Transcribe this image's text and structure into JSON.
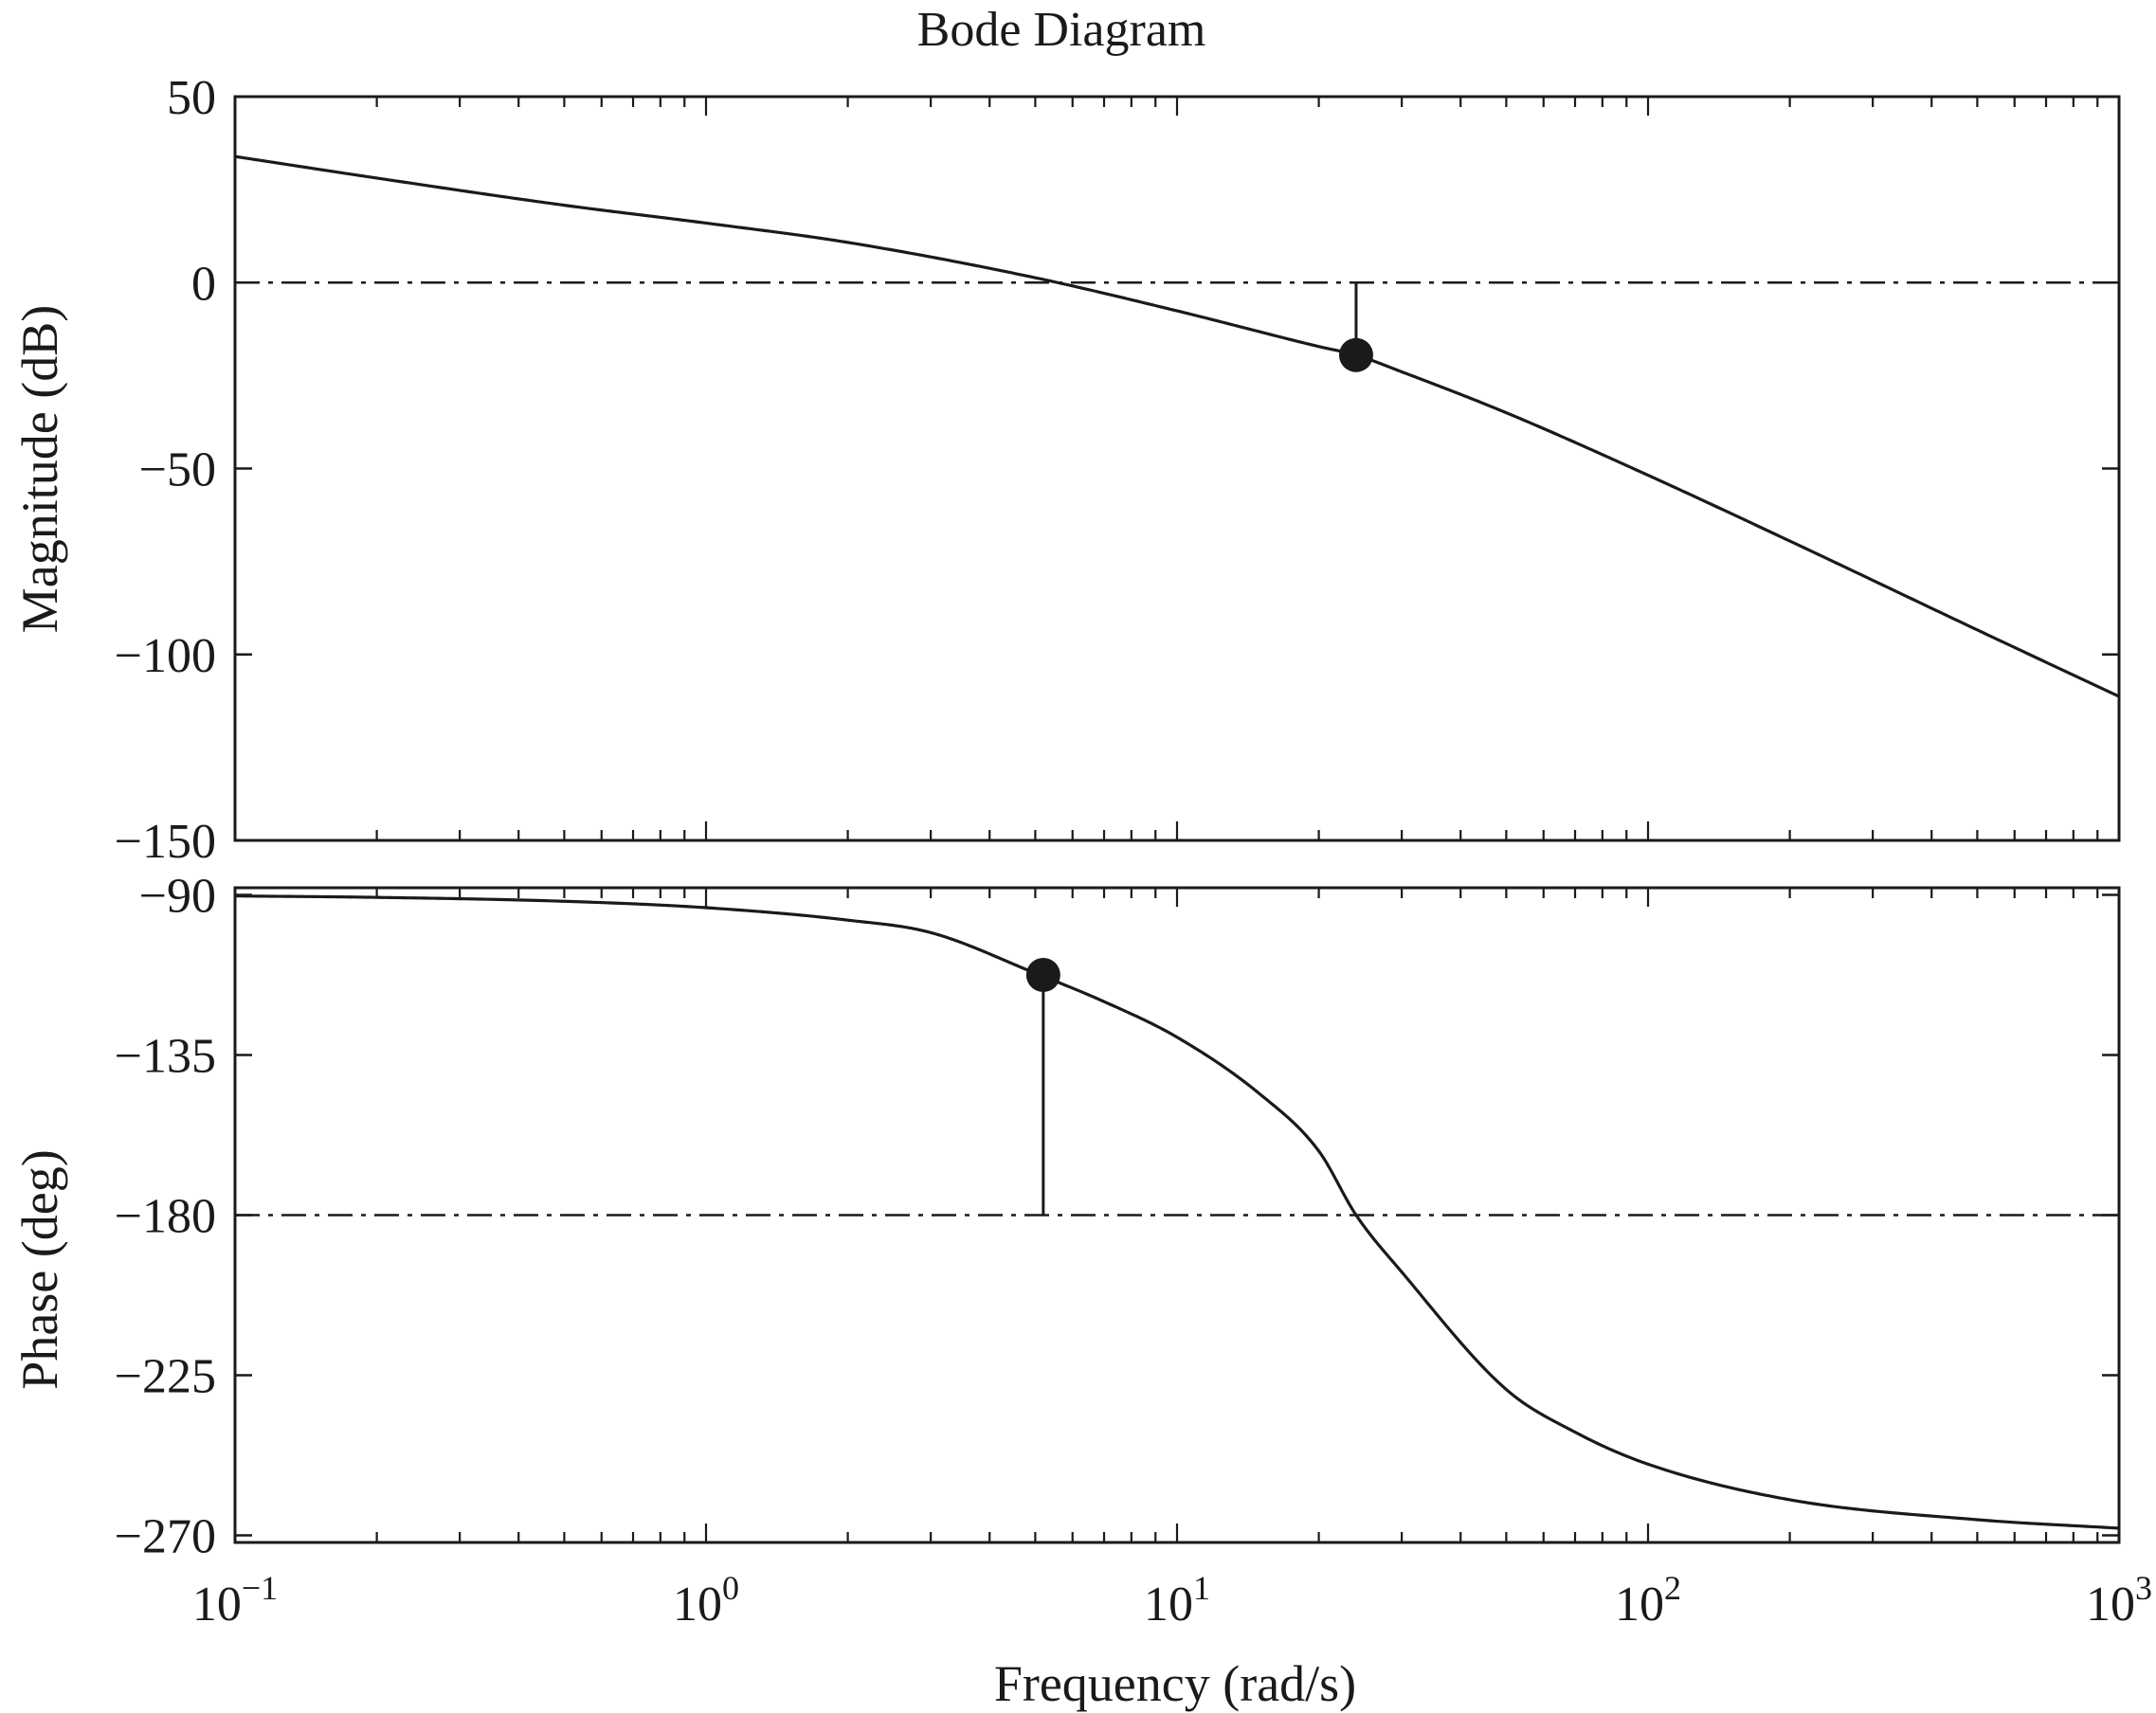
{
  "chart_data": [
    {
      "type": "line",
      "title": "Bode Diagram",
      "xlabel": "",
      "ylabel": "Magnitude (dB)",
      "xscale": "log",
      "xlim": [
        0.1,
        1000
      ],
      "ylim": [
        -150,
        50
      ],
      "yticks": [
        50,
        0,
        -50,
        -100,
        -150
      ],
      "ytick_labels": [
        "50",
        "0",
        "−50",
        "−100",
        "−150"
      ],
      "grid": false,
      "series": [
        {
          "x": [
            0.1,
            0.2,
            0.5,
            1,
            2,
            5,
            10,
            20,
            24,
            30,
            50,
            100,
            200,
            500,
            1000
          ],
          "y": [
            33.9,
            28.1,
            20.8,
            16.0,
            10.8,
            1.3,
            -7.6,
            -17.2,
            -19.5,
            -24.0,
            -35.0,
            -51.8,
            -69.5,
            -93.4,
            -111.3
          ]
        }
      ],
      "reference_line": {
        "y": 0,
        "style": "dash-dot"
      },
      "marker": {
        "x": 24,
        "y": -19.5,
        "stem_to_y": 0
      }
    },
    {
      "type": "line",
      "title": "",
      "xlabel": "Frequency (rad/s)",
      "ylabel": "Phase (deg)",
      "xscale": "log",
      "xlim": [
        0.1,
        1000
      ],
      "ylim": [
        -272,
        -88
      ],
      "yticks": [
        -90,
        -135,
        -180,
        -225,
        -270
      ],
      "ytick_labels": [
        "−90",
        "−135",
        "−180",
        "−225",
        "−270"
      ],
      "xtick_labels": [
        {
          "base": "10",
          "exp": "−1"
        },
        {
          "base": "10",
          "exp": "0"
        },
        {
          "base": "10",
          "exp": "1"
        },
        {
          "base": "10",
          "exp": "2"
        },
        {
          "base": "10",
          "exp": "3"
        }
      ],
      "grid": false,
      "series": [
        {
          "x": [
            0.1,
            0.2,
            0.5,
            1,
            2,
            3,
            5,
            7,
            10,
            15,
            20,
            24,
            30,
            50,
            70,
            100,
            200,
            500,
            1000
          ],
          "y": [
            -90.3,
            -90.7,
            -91.8,
            -93.6,
            -97.1,
            -100.6,
            -112,
            -120,
            -130,
            -146,
            -162,
            -180,
            -196,
            -229,
            -241,
            -250,
            -260,
            -265.6,
            -268
          ]
        }
      ],
      "reference_line": {
        "y": -180,
        "style": "dash-dot"
      },
      "marker": {
        "x": 5.2,
        "y": -112.5,
        "stem_to_y": -180
      }
    }
  ]
}
